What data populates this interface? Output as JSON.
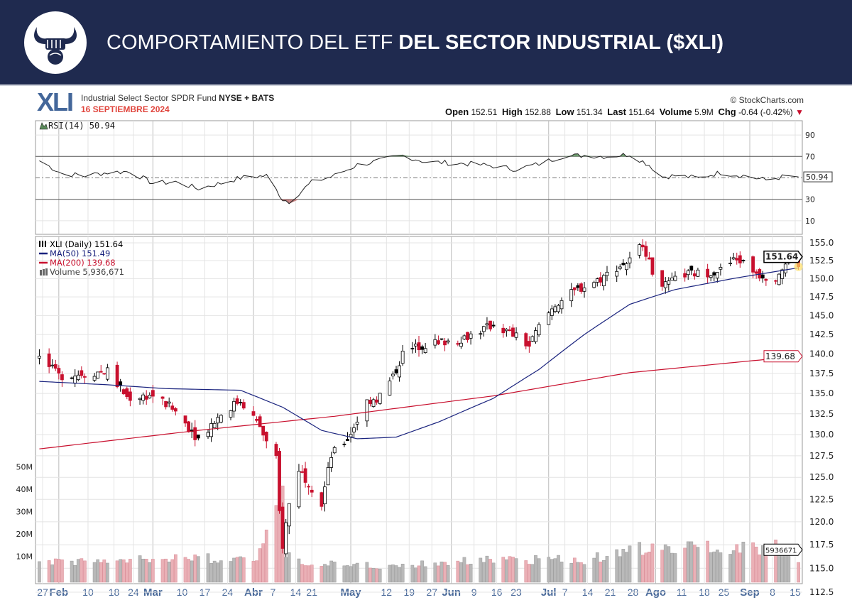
{
  "banner": {
    "title_light": "COMPORTAMIENTO DEL ETF",
    "title_bold": "DEL SECTOR INDUSTRIAL ($XLI)",
    "logo_icon": "bull-fist-logo"
  },
  "header": {
    "symbol": "XLI",
    "name": "Industrial Select Sector SPDR Fund",
    "exchange": "NYSE + BATS",
    "date": "16 SEPTIEMBRE 2024",
    "copyright": "© StockCharts.com",
    "open_label": "Open",
    "open": "152.51",
    "high_label": "High",
    "high": "152.88",
    "low_label": "Low",
    "low": "151.34",
    "last_label": "Last",
    "last": "151.64",
    "volume_label": "Volume",
    "volume": "5.9M",
    "chg_label": "Chg",
    "chg": "-0.64 (-0.42%)"
  },
  "colors": {
    "banner": "#1f2a4f",
    "up": "#000000",
    "down": "#c8102e",
    "ma50": "#1a237e",
    "ma200": "#c8102e",
    "vol_up": "#b9b9b9",
    "vol_down": "#eab0b6",
    "rsi_fill_high": "#6b9b6b",
    "rsi_fill_low": "#c47f7f"
  },
  "chart_data": [
    {
      "type": "line",
      "title": "RSI(14) 50.94",
      "legend": "RSI(14) 50.94",
      "ylim": [
        0,
        100
      ],
      "yticks": [
        "90",
        "70",
        "30",
        "10"
      ],
      "bands": [
        70,
        30
      ],
      "last_label": "50.94",
      "x": [
        "2024-01-26",
        "2024-02-02",
        "2024-02-09",
        "2024-02-16",
        "2024-02-23",
        "2024-03-01",
        "2024-03-08",
        "2024-03-15",
        "2024-03-22",
        "2024-03-28",
        "2024-04-05",
        "2024-04-10",
        "2024-04-12",
        "2024-04-19",
        "2024-04-26",
        "2024-05-03",
        "2024-05-10",
        "2024-05-17",
        "2024-05-24",
        "2024-05-31",
        "2024-06-07",
        "2024-06-14",
        "2024-06-21",
        "2024-06-28",
        "2024-07-05",
        "2024-07-12",
        "2024-07-19",
        "2024-07-26",
        "2024-08-01",
        "2024-08-05",
        "2024-08-09",
        "2024-08-16",
        "2024-08-23",
        "2024-08-30",
        "2024-09-06",
        "2024-09-13",
        "2024-09-16"
      ],
      "values": [
        66,
        54,
        52,
        55,
        56,
        45,
        46,
        40,
        45,
        50,
        52,
        30,
        28,
        46,
        52,
        62,
        66,
        71,
        65,
        64,
        63,
        61,
        58,
        63,
        70,
        71,
        70,
        72,
        62,
        51,
        52,
        50,
        55,
        52,
        48,
        52,
        50.94
      ]
    },
    {
      "type": "candlestick",
      "legend": [
        "XLI (Daily) 151.64",
        "MA(50) 151.49",
        "MA(200) 139.68",
        "Volume 5,936,671"
      ],
      "ylim": [
        112.5,
        156
      ],
      "scale": "log",
      "yticks": [
        "155.0",
        "152.5",
        "150.0",
        "147.5",
        "145.0",
        "142.5",
        "140.0",
        "137.5",
        "135.0",
        "132.5",
        "130.0",
        "127.5",
        "125.0",
        "122.5",
        "120.0",
        "117.5",
        "115.0",
        "112.5"
      ],
      "last_price_label": "151.64",
      "ma200_label": "139.68",
      "volume_label": "5936671",
      "xticks": [
        [
          "2024-01-27",
          "27",
          false
        ],
        [
          "2024-02-01",
          "Feb",
          true
        ],
        [
          "2024-02-10",
          "10",
          false
        ],
        [
          "2024-02-18",
          "18",
          false
        ],
        [
          "2024-02-24",
          "24",
          false
        ],
        [
          "2024-03-01",
          "Mar",
          true
        ],
        [
          "2024-03-10",
          "10",
          false
        ],
        [
          "2024-03-17",
          "17",
          false
        ],
        [
          "2024-03-24",
          "24",
          false
        ],
        [
          "2024-04-01",
          "Abr",
          true
        ],
        [
          "2024-04-07",
          "7",
          false
        ],
        [
          "2024-04-14",
          "14",
          false
        ],
        [
          "2024-04-19",
          "21",
          false
        ],
        [
          "2024-05-01",
          "May",
          true
        ],
        [
          "2024-05-12",
          "12",
          false
        ],
        [
          "2024-05-19",
          "19",
          false
        ],
        [
          "2024-05-26",
          "27",
          false
        ],
        [
          "2024-06-01",
          "Jun",
          true
        ],
        [
          "2024-06-08",
          "9",
          false
        ],
        [
          "2024-06-15",
          "16",
          false
        ],
        [
          "2024-06-21",
          "23",
          false
        ],
        [
          "2024-07-01",
          "Jul",
          true
        ],
        [
          "2024-07-06",
          "7",
          false
        ],
        [
          "2024-07-13",
          "14",
          false
        ],
        [
          "2024-07-20",
          "21",
          false
        ],
        [
          "2024-07-27",
          "28",
          false
        ],
        [
          "2024-08-03",
          "Ago",
          true
        ],
        [
          "2024-08-11",
          "11",
          false
        ],
        [
          "2024-08-18",
          "18",
          false
        ],
        [
          "2024-08-24",
          "25",
          false
        ],
        [
          "2024-09-01",
          "Sep",
          true
        ],
        [
          "2024-09-08",
          "8",
          false
        ],
        [
          "2024-09-15",
          "15",
          false
        ]
      ],
      "close_keypoints": {
        "x": [
          "2024-01-26",
          "2024-02-01",
          "2024-02-09",
          "2024-02-16",
          "2024-02-22",
          "2024-03-01",
          "2024-03-08",
          "2024-03-15",
          "2024-03-22",
          "2024-03-28",
          "2024-04-03",
          "2024-04-05",
          "2024-04-08",
          "2024-04-09",
          "2024-04-10",
          "2024-04-12",
          "2024-04-15",
          "2024-04-18",
          "2024-04-22",
          "2024-04-25",
          "2024-04-30",
          "2024-05-06",
          "2024-05-10",
          "2024-05-14",
          "2024-05-17",
          "2024-05-22",
          "2024-05-28",
          "2024-06-03",
          "2024-06-10",
          "2024-06-14",
          "2024-06-20",
          "2024-06-25",
          "2024-06-28",
          "2024-07-03",
          "2024-07-10",
          "2024-07-17",
          "2024-07-22",
          "2024-07-26",
          "2024-07-30",
          "2024-08-02",
          "2024-08-06",
          "2024-08-12",
          "2024-08-19",
          "2024-08-23",
          "2024-08-28",
          "2024-09-04",
          "2024-09-09",
          "2024-09-12",
          "2024-09-16"
        ],
        "values": [
          139.5,
          137.2,
          137.5,
          137.8,
          134.5,
          134.8,
          132.8,
          129.5,
          132.5,
          134.2,
          131,
          129,
          127,
          121,
          117.5,
          122,
          126,
          124.5,
          122,
          127.5,
          129.5,
          134,
          134.8,
          137,
          140,
          141,
          141.5,
          141.8,
          143,
          143.8,
          142.5,
          141,
          143.5,
          146.5,
          148.5,
          150,
          151.5,
          152.5,
          155,
          151,
          149,
          150.6,
          150.8,
          151.2,
          152.8,
          150.5,
          150.3,
          152,
          151.64
        ]
      },
      "ma50": {
        "name": "MA(50)",
        "x": [
          "2024-01-26",
          "2024-02-15",
          "2024-03-05",
          "2024-03-28",
          "2024-04-10",
          "2024-04-22",
          "2024-05-03",
          "2024-05-15",
          "2024-05-28",
          "2024-06-14",
          "2024-06-28",
          "2024-07-12",
          "2024-07-26",
          "2024-08-09",
          "2024-08-28",
          "2024-09-16"
        ],
        "values": [
          136.5,
          136.1,
          135.6,
          135.4,
          133.3,
          130.5,
          129.5,
          129.7,
          131.5,
          134.4,
          138,
          142.5,
          146.5,
          148.5,
          150.1,
          151.49
        ]
      },
      "ma200": {
        "name": "MA(200)",
        "x": [
          "2024-01-26",
          "2024-03-15",
          "2024-04-26",
          "2024-06-14",
          "2024-07-26",
          "2024-09-16"
        ],
        "values": [
          128.3,
          130.5,
          132.2,
          134.7,
          137.6,
          139.68
        ]
      },
      "volume_axis": {
        "ticks": [
          "50M",
          "40M",
          "30M",
          "20M",
          "10M"
        ]
      },
      "volume_keypoints": {
        "x": [
          "2024-01-26",
          "2024-02-20",
          "2024-03-08",
          "2024-04-01",
          "2024-04-09",
          "2024-04-10",
          "2024-04-11",
          "2024-04-15",
          "2024-05-10",
          "2024-06-14",
          "2024-07-12",
          "2024-08-05",
          "2024-09-11",
          "2024-09-16"
        ],
        "values": [
          8,
          7.5,
          10,
          8,
          30,
          45,
          12,
          8,
          5.5,
          8.5,
          8.5,
          15,
          14,
          5.94
        ]
      }
    }
  ]
}
